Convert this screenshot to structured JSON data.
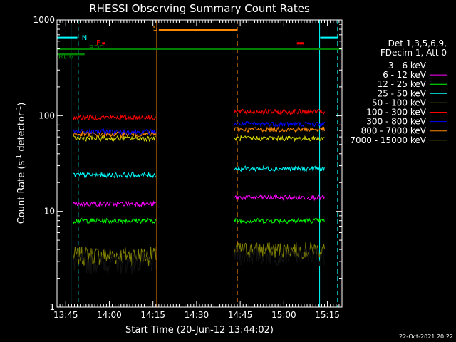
{
  "chart_data": {
    "type": "line",
    "title": "RHESSI Observing Summary Count Rates",
    "xlabel": "Start Time (20-Jun-12 13:44:02)",
    "ylabel_main": "Count Rate (s",
    "ylabel_sup1": "-1",
    "ylabel_mid": " detector",
    "ylabel_sup2": "-1",
    "ylabel_end": ")",
    "y_scale": "log",
    "ylim": [
      1,
      1000
    ],
    "xlim_minutes": [
      -2,
      96
    ],
    "x_ticks": [
      {
        "m": 1,
        "label": "13:45"
      },
      {
        "m": 16,
        "label": "14:00"
      },
      {
        "m": 31,
        "label": "14:15"
      },
      {
        "m": 46,
        "label": "14:30"
      },
      {
        "m": 61,
        "label": "14:45"
      },
      {
        "m": 76,
        "label": "15:00"
      },
      {
        "m": 91,
        "label": "15:15"
      }
    ],
    "y_ticks": [
      {
        "v": 1,
        "label": "1"
      },
      {
        "v": 10,
        "label": "10"
      },
      {
        "v": 100,
        "label": "100"
      },
      {
        "v": 1000,
        "label": "1000"
      }
    ],
    "legend_header": [
      "Det 1,3,5,6,9,",
      "FDecim 1, Att 0"
    ],
    "series": [
      {
        "name": "3 - 6 keV",
        "color": "#000000",
        "a": 3.0,
        "b": 3.5
      },
      {
        "name": "6 - 12 keV",
        "color": "#ff00ff",
        "a": 12.0,
        "b": 14.0
      },
      {
        "name": "12 - 25 keV",
        "color": "#00ff00",
        "a": 8.0,
        "b": 8.0
      },
      {
        "name": "25 - 50 keV",
        "color": "#00ffff",
        "a": 24.0,
        "b": 28.0
      },
      {
        "name": "50 - 100 keV",
        "color": "#dddd00",
        "a": 58.0,
        "b": 58.0
      },
      {
        "name": "100 - 300 keV",
        "color": "#ff0000",
        "a": 96.0,
        "b": 110.0
      },
      {
        "name": "300 - 800 keV",
        "color": "#0000ff",
        "a": 68.0,
        "b": 82.0
      },
      {
        "name": "800 - 7000 keV",
        "color": "#ff8800",
        "a": 64.0,
        "b": 72.0
      },
      {
        "name": "7000 - 15000 keV",
        "color": "#808000",
        "a": 3.5,
        "b": 4.0
      }
    ],
    "segments": [
      [
        3.5,
        32
      ],
      [
        59,
        90
      ]
    ],
    "flag_bars": [
      {
        "label": "N",
        "color": "#00ffff",
        "m0": -2,
        "m1": 5,
        "v": 650,
        "label_m": 6.5,
        "label_v": 660
      },
      {
        "label": "N",
        "color": "#00ffff",
        "m0": 88.5,
        "m1": 94.5,
        "v": 650,
        "label_m": null,
        "label_v": null
      },
      {
        "label": "F",
        "color": "#ff0000",
        "m0": 13.5,
        "m1": 14.5,
        "v": 570,
        "label_m": 11.5,
        "label_v": 590
      },
      {
        "label": "F",
        "color": "#ff0000",
        "m0": 80.5,
        "m1": 83,
        "v": 570,
        "label_m": null,
        "label_v": null
      },
      {
        "label": "S",
        "color": "#ff8800",
        "m0": 33,
        "m1": 60,
        "v": 780,
        "label_m": 31,
        "label_v": 830
      },
      {
        "label": "RD0",
        "color": "#008000",
        "m0": -2,
        "m1": 96,
        "v": 500,
        "label_m": 9,
        "label_v": 520
      },
      {
        "label": "RD6",
        "color": "#008000",
        "m0": -2,
        "m1": 3.5,
        "v": 440,
        "label_m": -1.5,
        "label_v": 420
      },
      {
        "label": "RD6",
        "color": "#008000",
        "m0": 3.5,
        "m1": 7.5,
        "v": 440,
        "label_m": null,
        "label_v": null
      }
    ],
    "vlines": [
      {
        "m": 2.8,
        "color": "#00ffff",
        "dash": false
      },
      {
        "m": 5.3,
        "color": "#00ffff",
        "dash": true
      },
      {
        "m": 32.3,
        "color": "#ff8800",
        "dash": false
      },
      {
        "m": 60.0,
        "color": "#ff8800",
        "dash": true
      },
      {
        "m": 88.3,
        "color": "#00ffff",
        "dash": false
      },
      {
        "m": 94.5,
        "color": "#00ffff",
        "dash": true
      }
    ]
  },
  "footer": {
    "timestamp": "22-Oct-2021 20:22"
  }
}
